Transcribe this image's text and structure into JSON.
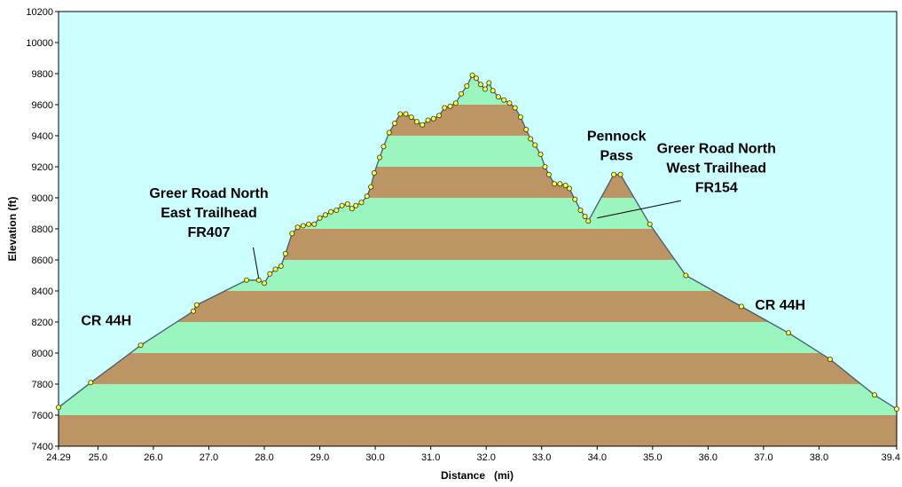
{
  "chart_data": {
    "type": "area",
    "xlabel": "Distance   (mi)",
    "ylabel": "Elevation (ft)",
    "xlim": [
      24.29,
      39.4
    ],
    "ylim": [
      7400,
      10200
    ],
    "x_ticks": [
      24.29,
      25.0,
      26.0,
      27.0,
      28.0,
      29.0,
      30.0,
      31.0,
      32.0,
      33.0,
      34.0,
      35.0,
      36.0,
      37.0,
      38.0,
      39.4
    ],
    "x_tick_labels": [
      "24.29",
      "25.0",
      "26.0",
      "27.0",
      "28.0",
      "29.0",
      "30.0",
      "31.0",
      "32.0",
      "33.0",
      "34.0",
      "35.0",
      "36.0",
      "37.0",
      "38.0",
      "39.4"
    ],
    "y_ticks": [
      7400,
      7600,
      7800,
      8000,
      8200,
      8400,
      8600,
      8800,
      9000,
      9200,
      9400,
      9600,
      9800,
      10000,
      10200
    ],
    "y_tick_labels": [
      "7400",
      "7600",
      "7800",
      "8000",
      "8200",
      "8400",
      "8600",
      "8800",
      "9000",
      "9200",
      "9400",
      "9600",
      "9800",
      "10000",
      "10200"
    ],
    "band_colors": [
      "#bd9565",
      "#9af5be"
    ],
    "plot_background": "#ccffff",
    "line_color": "#4a5a6a",
    "marker_color": "#ffff33",
    "points": [
      {
        "x": 24.29,
        "y": 7650
      },
      {
        "x": 24.87,
        "y": 7810
      },
      {
        "x": 25.77,
        "y": 8050
      },
      {
        "x": 26.72,
        "y": 8270
      },
      {
        "x": 26.78,
        "y": 8310
      },
      {
        "x": 27.68,
        "y": 8470
      },
      {
        "x": 27.9,
        "y": 8470
      },
      {
        "x": 28.0,
        "y": 8450
      },
      {
        "x": 28.1,
        "y": 8510
      },
      {
        "x": 28.2,
        "y": 8540
      },
      {
        "x": 28.3,
        "y": 8560
      },
      {
        "x": 28.38,
        "y": 8640
      },
      {
        "x": 28.5,
        "y": 8770
      },
      {
        "x": 28.6,
        "y": 8810
      },
      {
        "x": 28.7,
        "y": 8820
      },
      {
        "x": 28.8,
        "y": 8830
      },
      {
        "x": 28.9,
        "y": 8830
      },
      {
        "x": 29.0,
        "y": 8870
      },
      {
        "x": 29.1,
        "y": 8890
      },
      {
        "x": 29.2,
        "y": 8910
      },
      {
        "x": 29.3,
        "y": 8920
      },
      {
        "x": 29.4,
        "y": 8950
      },
      {
        "x": 29.5,
        "y": 8960
      },
      {
        "x": 29.58,
        "y": 8930
      },
      {
        "x": 29.65,
        "y": 8950
      },
      {
        "x": 29.75,
        "y": 8970
      },
      {
        "x": 29.85,
        "y": 9010
      },
      {
        "x": 29.92,
        "y": 9070
      },
      {
        "x": 29.98,
        "y": 9160
      },
      {
        "x": 30.08,
        "y": 9260
      },
      {
        "x": 30.15,
        "y": 9330
      },
      {
        "x": 30.25,
        "y": 9420
      },
      {
        "x": 30.35,
        "y": 9480
      },
      {
        "x": 30.45,
        "y": 9540
      },
      {
        "x": 30.55,
        "y": 9540
      },
      {
        "x": 30.65,
        "y": 9520
      },
      {
        "x": 30.75,
        "y": 9490
      },
      {
        "x": 30.85,
        "y": 9470
      },
      {
        "x": 30.95,
        "y": 9500
      },
      {
        "x": 31.05,
        "y": 9510
      },
      {
        "x": 31.15,
        "y": 9530
      },
      {
        "x": 31.25,
        "y": 9580
      },
      {
        "x": 31.35,
        "y": 9590
      },
      {
        "x": 31.45,
        "y": 9610
      },
      {
        "x": 31.55,
        "y": 9670
      },
      {
        "x": 31.65,
        "y": 9720
      },
      {
        "x": 31.75,
        "y": 9790
      },
      {
        "x": 31.82,
        "y": 9770
      },
      {
        "x": 31.9,
        "y": 9730
      },
      {
        "x": 31.98,
        "y": 9700
      },
      {
        "x": 32.05,
        "y": 9740
      },
      {
        "x": 32.12,
        "y": 9690
      },
      {
        "x": 32.22,
        "y": 9650
      },
      {
        "x": 32.32,
        "y": 9630
      },
      {
        "x": 32.42,
        "y": 9610
      },
      {
        "x": 32.52,
        "y": 9580
      },
      {
        "x": 32.62,
        "y": 9520
      },
      {
        "x": 32.72,
        "y": 9440
      },
      {
        "x": 32.8,
        "y": 9380
      },
      {
        "x": 32.88,
        "y": 9340
      },
      {
        "x": 32.98,
        "y": 9280
      },
      {
        "x": 33.06,
        "y": 9200
      },
      {
        "x": 33.13,
        "y": 9150
      },
      {
        "x": 33.23,
        "y": 9090
      },
      {
        "x": 33.33,
        "y": 9090
      },
      {
        "x": 33.43,
        "y": 9080
      },
      {
        "x": 33.5,
        "y": 9060
      },
      {
        "x": 33.6,
        "y": 8990
      },
      {
        "x": 33.7,
        "y": 8920
      },
      {
        "x": 33.78,
        "y": 8880
      },
      {
        "x": 33.84,
        "y": 8850
      },
      {
        "x": 34.3,
        "y": 9150
      },
      {
        "x": 34.42,
        "y": 9150
      },
      {
        "x": 34.95,
        "y": 8830
      },
      {
        "x": 35.6,
        "y": 8500
      },
      {
        "x": 36.6,
        "y": 8300
      },
      {
        "x": 37.45,
        "y": 8130
      },
      {
        "x": 38.2,
        "y": 7960
      },
      {
        "x": 39.0,
        "y": 7730
      },
      {
        "x": 39.4,
        "y": 7640
      }
    ],
    "annotations": [
      {
        "lines": [
          "Greer Road North",
          "East Trailhead",
          "FR407"
        ],
        "anchor_x": 27.9,
        "anchor_y": 8480,
        "text_x": 27.0,
        "text_y": 9000,
        "leader": true
      },
      {
        "lines": [
          "CR 44H"
        ],
        "anchor_x": 25.5,
        "anchor_y": 8160,
        "text_x": 25.15,
        "text_y": 8180,
        "leader": false
      },
      {
        "lines": [
          "Pennock",
          "Pass"
        ],
        "anchor_x": 34.35,
        "anchor_y": 9200,
        "text_x": 34.35,
        "text_y": 9370,
        "leader": false
      },
      {
        "lines": [
          "Greer Road North",
          "West Trailhead",
          "FR154"
        ],
        "anchor_x": 34.0,
        "anchor_y": 8870,
        "text_x": 36.15,
        "text_y": 9290,
        "leader": true
      },
      {
        "lines": [
          "CR 44H"
        ],
        "anchor_x": 37.3,
        "anchor_y": 8290,
        "text_x": 37.3,
        "text_y": 8280,
        "leader": false
      }
    ]
  }
}
